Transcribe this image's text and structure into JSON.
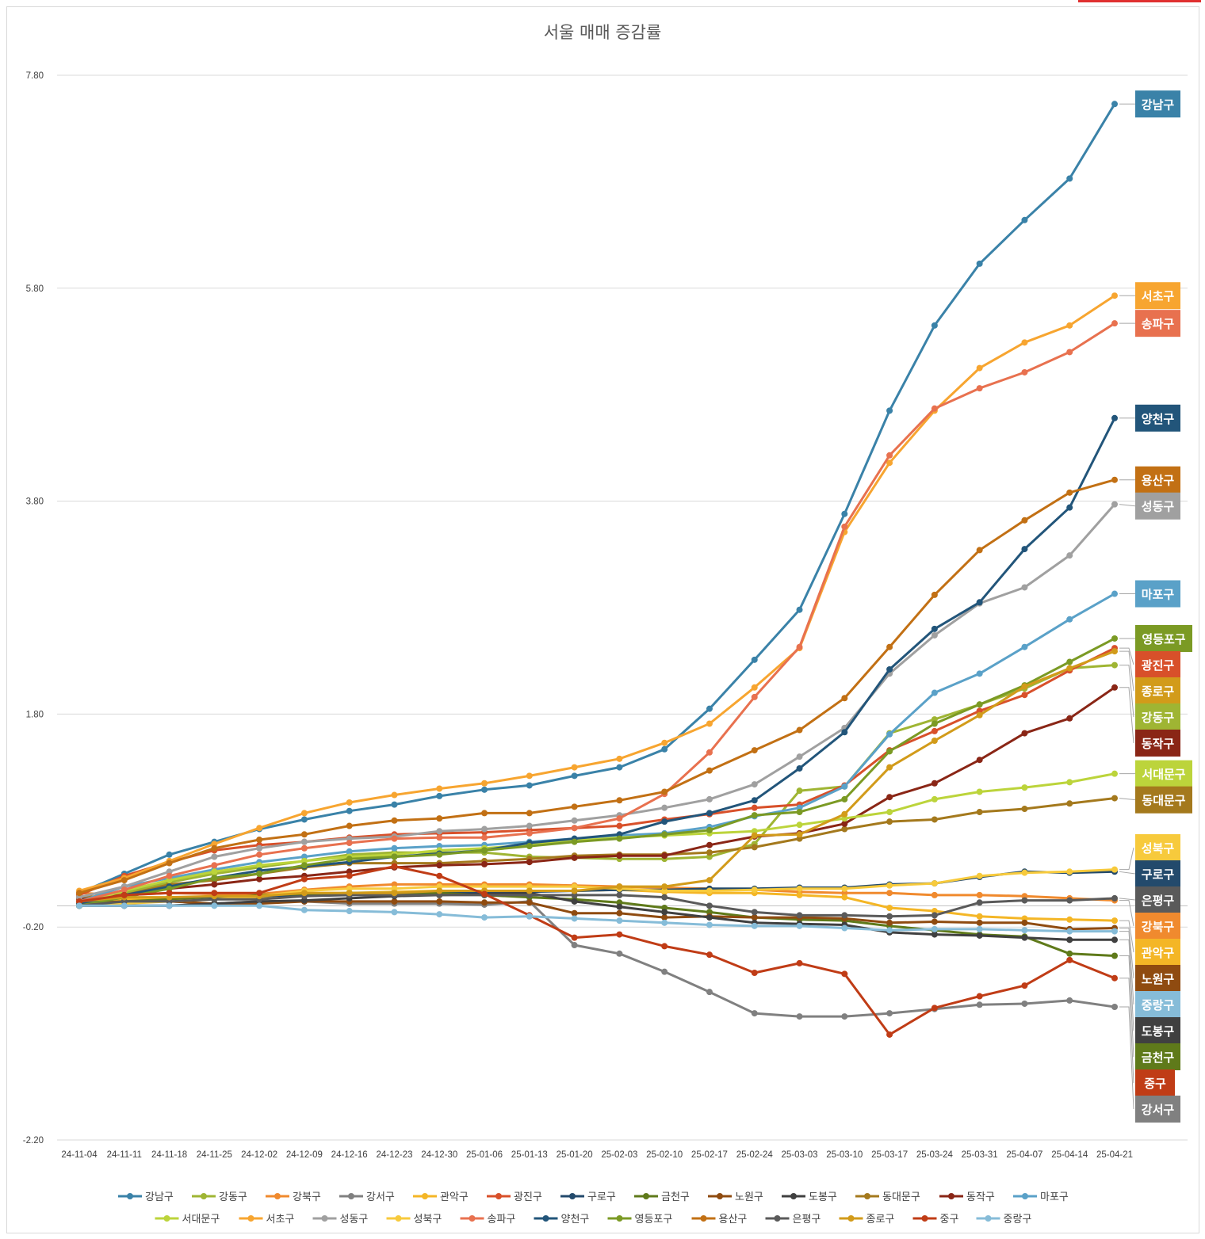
{
  "chart_data": {
    "type": "line",
    "title": "서울 매매 증감률",
    "xlabel": "",
    "ylabel": "",
    "ylim": [
      -2.2,
      7.8
    ],
    "yticks": [
      "7.80",
      "5.80",
      "3.80",
      "1.80",
      "-0.20",
      "-2.20"
    ],
    "grid": true,
    "legend_position": "bottom",
    "categories": [
      "24-11-04",
      "24-11-11",
      "24-11-18",
      "24-11-25",
      "24-12-02",
      "24-12-09",
      "24-12-16",
      "24-12-23",
      "24-12-30",
      "25-01-06",
      "25-01-13",
      "25-01-20",
      "25-02-03",
      "25-02-10",
      "25-02-17",
      "25-02-24",
      "25-03-03",
      "25-03-10",
      "25-03-17",
      "25-03-24",
      "25-03-31",
      "25-04-07",
      "25-04-14",
      "25-04-21"
    ],
    "series": [
      {
        "name": "강남구",
        "color": "#3a82a8",
        "values": [
          0.12,
          0.3,
          0.48,
          0.6,
          0.72,
          0.81,
          0.89,
          0.95,
          1.03,
          1.09,
          1.13,
          1.22,
          1.3,
          1.47,
          1.85,
          2.31,
          2.78,
          3.68,
          4.65,
          5.45,
          6.03,
          6.44,
          6.83,
          7.53
        ]
      },
      {
        "name": "강동구",
        "color": "#9fb533",
        "values": [
          0.0,
          0.12,
          0.22,
          0.3,
          0.36,
          0.42,
          0.48,
          0.5,
          0.5,
          0.5,
          0.46,
          0.45,
          0.44,
          0.44,
          0.46,
          0.58,
          1.08,
          1.12,
          1.62,
          1.75,
          1.89,
          2.04,
          2.23,
          2.26
        ]
      },
      {
        "name": "강북구",
        "color": "#f08a2e",
        "values": [
          0.12,
          0.1,
          0.12,
          0.11,
          0.11,
          0.15,
          0.18,
          0.2,
          0.2,
          0.2,
          0.2,
          0.19,
          0.18,
          0.17,
          0.16,
          0.15,
          0.13,
          0.12,
          0.12,
          0.1,
          0.1,
          0.09,
          0.07,
          0.05
        ]
      },
      {
        "name": "강서구",
        "color": "#808080",
        "values": [
          0.0,
          0.0,
          0.0,
          0.02,
          0.04,
          0.04,
          0.02,
          0.02,
          0.02,
          0.01,
          0.04,
          -0.37,
          -0.45,
          -0.62,
          -0.81,
          -1.01,
          -1.04,
          -1.04,
          -1.01,
          -0.97,
          -0.93,
          -0.92,
          -0.89,
          -0.95
        ]
      },
      {
        "name": "관악구",
        "color": "#f4b626",
        "values": [
          0.04,
          0.06,
          0.06,
          0.08,
          0.08,
          0.12,
          0.12,
          0.13,
          0.14,
          0.14,
          0.14,
          0.14,
          0.15,
          0.13,
          0.12,
          0.12,
          0.1,
          0.08,
          -0.02,
          -0.05,
          -0.1,
          -0.12,
          -0.13,
          -0.14
        ]
      },
      {
        "name": "광진구",
        "color": "#d8502a",
        "values": [
          0.1,
          0.28,
          0.41,
          0.52,
          0.57,
          0.6,
          0.64,
          0.67,
          0.68,
          0.69,
          0.71,
          0.73,
          0.75,
          0.81,
          0.86,
          0.92,
          0.95,
          1.13,
          1.46,
          1.64,
          1.83,
          1.98,
          2.21,
          2.42
        ]
      },
      {
        "name": "구로구",
        "color": "#234a6c",
        "values": [
          0.0,
          0.02,
          0.06,
          0.08,
          0.09,
          0.1,
          0.11,
          0.12,
          0.12,
          0.12,
          0.13,
          0.14,
          0.15,
          0.15,
          0.16,
          0.16,
          0.17,
          0.17,
          0.2,
          0.21,
          0.27,
          0.32,
          0.31,
          0.32
        ]
      },
      {
        "name": "금천구",
        "color": "#5f7a1a",
        "values": [
          0.02,
          0.04,
          0.06,
          0.06,
          0.1,
          0.11,
          0.12,
          0.12,
          0.12,
          0.1,
          0.08,
          0.06,
          0.03,
          -0.02,
          -0.06,
          -0.11,
          -0.13,
          -0.14,
          -0.19,
          -0.23,
          -0.27,
          -0.29,
          -0.45,
          -0.47
        ]
      },
      {
        "name": "노원구",
        "color": "#8f4b10",
        "values": [
          0.02,
          0.04,
          0.04,
          0.02,
          0.02,
          0.04,
          0.04,
          0.04,
          0.04,
          0.03,
          0.03,
          -0.07,
          -0.07,
          -0.11,
          -0.1,
          -0.11,
          -0.11,
          -0.12,
          -0.16,
          -0.15,
          -0.16,
          -0.16,
          -0.22,
          -0.21
        ]
      },
      {
        "name": "도봉구",
        "color": "#404040",
        "values": [
          0.0,
          0.0,
          0.0,
          0.02,
          0.04,
          0.05,
          0.07,
          0.09,
          0.1,
          0.11,
          0.12,
          0.04,
          -0.01,
          -0.06,
          -0.11,
          -0.16,
          -0.17,
          -0.18,
          -0.25,
          -0.27,
          -0.28,
          -0.3,
          -0.32,
          -0.32
        ]
      },
      {
        "name": "동대문구",
        "color": "#a4791d",
        "values": [
          0.08,
          0.1,
          0.2,
          0.24,
          0.3,
          0.36,
          0.4,
          0.4,
          0.4,
          0.42,
          0.44,
          0.47,
          0.48,
          0.48,
          0.5,
          0.55,
          0.63,
          0.72,
          0.79,
          0.81,
          0.88,
          0.91,
          0.96,
          1.01
        ]
      },
      {
        "name": "동작구",
        "color": "#8a2616",
        "values": [
          0.06,
          0.1,
          0.16,
          0.2,
          0.25,
          0.28,
          0.32,
          0.36,
          0.38,
          0.39,
          0.41,
          0.45,
          0.47,
          0.47,
          0.57,
          0.65,
          0.68,
          0.77,
          1.02,
          1.15,
          1.37,
          1.62,
          1.76,
          2.05
        ]
      },
      {
        "name": "마포구",
        "color": "#5aa1c8",
        "values": [
          0.04,
          0.18,
          0.26,
          0.34,
          0.41,
          0.46,
          0.51,
          0.54,
          0.56,
          0.57,
          0.6,
          0.63,
          0.66,
          0.68,
          0.74,
          0.84,
          0.92,
          1.12,
          1.61,
          2.0,
          2.18,
          2.43,
          2.69,
          2.93
        ]
      },
      {
        "name": "서대문구",
        "color": "#bcd43b",
        "values": [
          0.02,
          0.14,
          0.24,
          0.32,
          0.38,
          0.42,
          0.46,
          0.48,
          0.52,
          0.54,
          0.57,
          0.61,
          0.64,
          0.66,
          0.68,
          0.7,
          0.76,
          0.82,
          0.88,
          1.0,
          1.07,
          1.11,
          1.16,
          1.24
        ]
      },
      {
        "name": "서초구",
        "color": "#f7a530",
        "values": [
          0.14,
          0.26,
          0.42,
          0.58,
          0.73,
          0.87,
          0.97,
          1.04,
          1.1,
          1.15,
          1.22,
          1.3,
          1.38,
          1.53,
          1.71,
          2.05,
          2.42,
          3.51,
          4.16,
          4.65,
          5.05,
          5.29,
          5.45,
          5.73
        ]
      },
      {
        "name": "성동구",
        "color": "#a0a0a0",
        "values": [
          0.08,
          0.18,
          0.32,
          0.46,
          0.54,
          0.6,
          0.63,
          0.65,
          0.7,
          0.72,
          0.75,
          0.8,
          0.85,
          0.92,
          1.0,
          1.14,
          1.4,
          1.67,
          2.18,
          2.54,
          2.84,
          2.99,
          3.29,
          3.77
        ]
      },
      {
        "name": "성북구",
        "color": "#f7ca3c",
        "values": [
          0.0,
          0.02,
          0.04,
          0.06,
          0.09,
          0.14,
          0.16,
          0.16,
          0.18,
          0.18,
          0.18,
          0.18,
          0.16,
          0.14,
          0.14,
          0.15,
          0.16,
          0.16,
          0.19,
          0.21,
          0.28,
          0.31,
          0.32,
          0.34
        ]
      },
      {
        "name": "송파구",
        "color": "#e8714f",
        "values": [
          0.04,
          0.15,
          0.28,
          0.38,
          0.48,
          0.54,
          0.59,
          0.63,
          0.64,
          0.64,
          0.68,
          0.73,
          0.82,
          1.05,
          1.44,
          1.96,
          2.43,
          3.56,
          4.23,
          4.67,
          4.86,
          5.01,
          5.2,
          5.47
        ]
      },
      {
        "name": "양천구",
        "color": "#22557a",
        "values": [
          0.02,
          0.1,
          0.18,
          0.26,
          0.33,
          0.37,
          0.41,
          0.46,
          0.49,
          0.52,
          0.59,
          0.63,
          0.67,
          0.79,
          0.87,
          0.99,
          1.29,
          1.63,
          2.22,
          2.6,
          2.85,
          3.35,
          3.74,
          4.58
        ]
      },
      {
        "name": "영등포구",
        "color": "#7b9a24",
        "values": [
          0.0,
          0.08,
          0.16,
          0.26,
          0.3,
          0.38,
          0.44,
          0.46,
          0.48,
          0.52,
          0.56,
          0.6,
          0.63,
          0.67,
          0.71,
          0.85,
          0.88,
          1.0,
          1.45,
          1.71,
          1.89,
          2.07,
          2.29,
          2.51
        ]
      },
      {
        "name": "용산구",
        "color": "#c27014",
        "values": [
          0.12,
          0.24,
          0.4,
          0.54,
          0.62,
          0.67,
          0.75,
          0.8,
          0.82,
          0.87,
          0.87,
          0.93,
          0.99,
          1.07,
          1.27,
          1.46,
          1.65,
          1.95,
          2.43,
          2.92,
          3.34,
          3.62,
          3.88,
          4.0
        ]
      },
      {
        "name": "은평구",
        "color": "#5a5a5a",
        "values": [
          0.0,
          0.04,
          0.04,
          0.06,
          0.06,
          0.09,
          0.1,
          0.1,
          0.1,
          0.1,
          0.1,
          0.1,
          0.1,
          0.08,
          0.0,
          -0.06,
          -0.09,
          -0.09,
          -0.1,
          -0.09,
          0.03,
          0.05,
          0.05,
          0.07
        ]
      },
      {
        "name": "종로구",
        "color": "#d29b1a",
        "values": [
          0.04,
          0.08,
          0.08,
          0.09,
          0.09,
          0.12,
          0.12,
          0.12,
          0.14,
          0.14,
          0.14,
          0.14,
          0.18,
          0.18,
          0.24,
          0.66,
          0.67,
          0.86,
          1.3,
          1.55,
          1.79,
          2.06,
          2.23,
          2.39
        ]
      },
      {
        "name": "중구",
        "color": "#c03c16",
        "values": [
          0.04,
          0.1,
          0.12,
          0.12,
          0.12,
          0.25,
          0.28,
          0.37,
          0.28,
          0.11,
          -0.09,
          -0.3,
          -0.27,
          -0.38,
          -0.46,
          -0.63,
          -0.54,
          -0.64,
          -1.21,
          -0.96,
          -0.85,
          -0.75,
          -0.51,
          -0.68
        ]
      },
      {
        "name": "중랑구",
        "color": "#86bcd8",
        "values": [
          0.0,
          0.0,
          0.0,
          0.0,
          0.0,
          -0.04,
          -0.05,
          -0.06,
          -0.08,
          -0.11,
          -0.1,
          -0.12,
          -0.14,
          -0.16,
          -0.18,
          -0.19,
          -0.19,
          -0.21,
          -0.23,
          -0.22,
          -0.22,
          -0.23,
          -0.24,
          -0.24
        ]
      }
    ],
    "end_labels": [
      {
        "name": "강남구",
        "color": "#3a82a8"
      },
      {
        "name": "서초구",
        "color": "#f7a530"
      },
      {
        "name": "송파구",
        "color": "#e8714f"
      },
      {
        "name": "양천구",
        "color": "#22557a"
      },
      {
        "name": "용산구",
        "color": "#c27014"
      },
      {
        "name": "성동구",
        "color": "#a0a0a0"
      },
      {
        "name": "마포구",
        "color": "#5aa1c8"
      },
      {
        "name": "영등포구",
        "color": "#7b9a24"
      },
      {
        "name": "광진구",
        "color": "#d8502a"
      },
      {
        "name": "강동구",
        "color": "#9fb533"
      },
      {
        "name": "종로구",
        "color": "#d29b1a"
      },
      {
        "name": "동작구",
        "color": "#8a2616"
      },
      {
        "name": "서대문구",
        "color": "#bcd43b"
      },
      {
        "name": "동대문구",
        "color": "#a4791d"
      },
      {
        "name": "구로구",
        "color": "#234a6c"
      },
      {
        "name": "성북구",
        "color": "#f7ca3c"
      },
      {
        "name": "관악구",
        "color": "#f4b626"
      },
      {
        "name": "은평구",
        "color": "#5a5a5a"
      },
      {
        "name": "강북구",
        "color": "#f08a2e"
      },
      {
        "name": "노원구",
        "color": "#8f4b10"
      },
      {
        "name": "중랑구",
        "color": "#86bcd8"
      },
      {
        "name": "도봉구",
        "color": "#404040"
      },
      {
        "name": "금천구",
        "color": "#5f7a1a"
      },
      {
        "name": "중구",
        "color": "#c03c16"
      },
      {
        "name": "강서구",
        "color": "#808080"
      }
    ]
  }
}
